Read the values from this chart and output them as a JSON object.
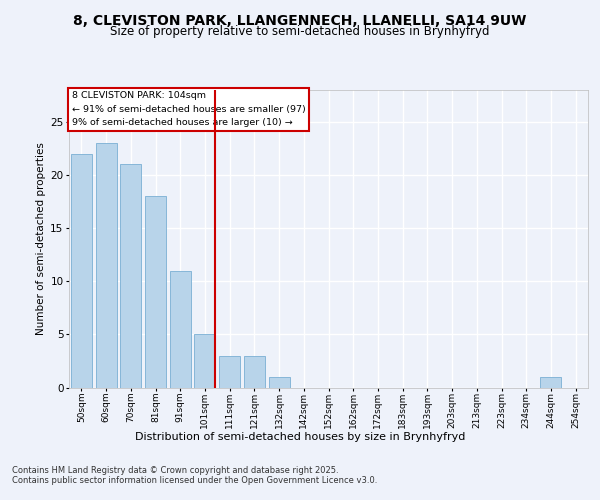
{
  "title1": "8, CLEVISTON PARK, LLANGENNECH, LLANELLI, SA14 9UW",
  "title2": "Size of property relative to semi-detached houses in Brynhyfryd",
  "xlabel": "Distribution of semi-detached houses by size in Brynhyfryd",
  "ylabel": "Number of semi-detached properties",
  "bins": [
    "50sqm",
    "60sqm",
    "70sqm",
    "81sqm",
    "91sqm",
    "101sqm",
    "111sqm",
    "121sqm",
    "132sqm",
    "142sqm",
    "152sqm",
    "162sqm",
    "172sqm",
    "183sqm",
    "193sqm",
    "203sqm",
    "213sqm",
    "223sqm",
    "234sqm",
    "244sqm",
    "254sqm"
  ],
  "values": [
    22,
    23,
    21,
    18,
    11,
    5,
    3,
    3,
    1,
    0,
    0,
    0,
    0,
    0,
    0,
    0,
    0,
    0,
    0,
    1,
    0
  ],
  "bar_color": "#b8d4ea",
  "bar_edge_color": "#7aafd4",
  "vline_color": "#cc0000",
  "annotation_title": "8 CLEVISTON PARK: 104sqm",
  "annotation_line1": "← 91% of semi-detached houses are smaller (97)",
  "annotation_line2": "9% of semi-detached houses are larger (10) →",
  "annotation_box_color": "#cc0000",
  "ylim": [
    0,
    28
  ],
  "yticks": [
    0,
    5,
    10,
    15,
    20,
    25
  ],
  "footer_line1": "Contains HM Land Registry data © Crown copyright and database right 2025.",
  "footer_line2": "Contains public sector information licensed under the Open Government Licence v3.0.",
  "bg_color": "#eef2fa",
  "plot_bg_color": "#eef2fa",
  "grid_color": "#ffffff",
  "vline_pos": 5.4
}
